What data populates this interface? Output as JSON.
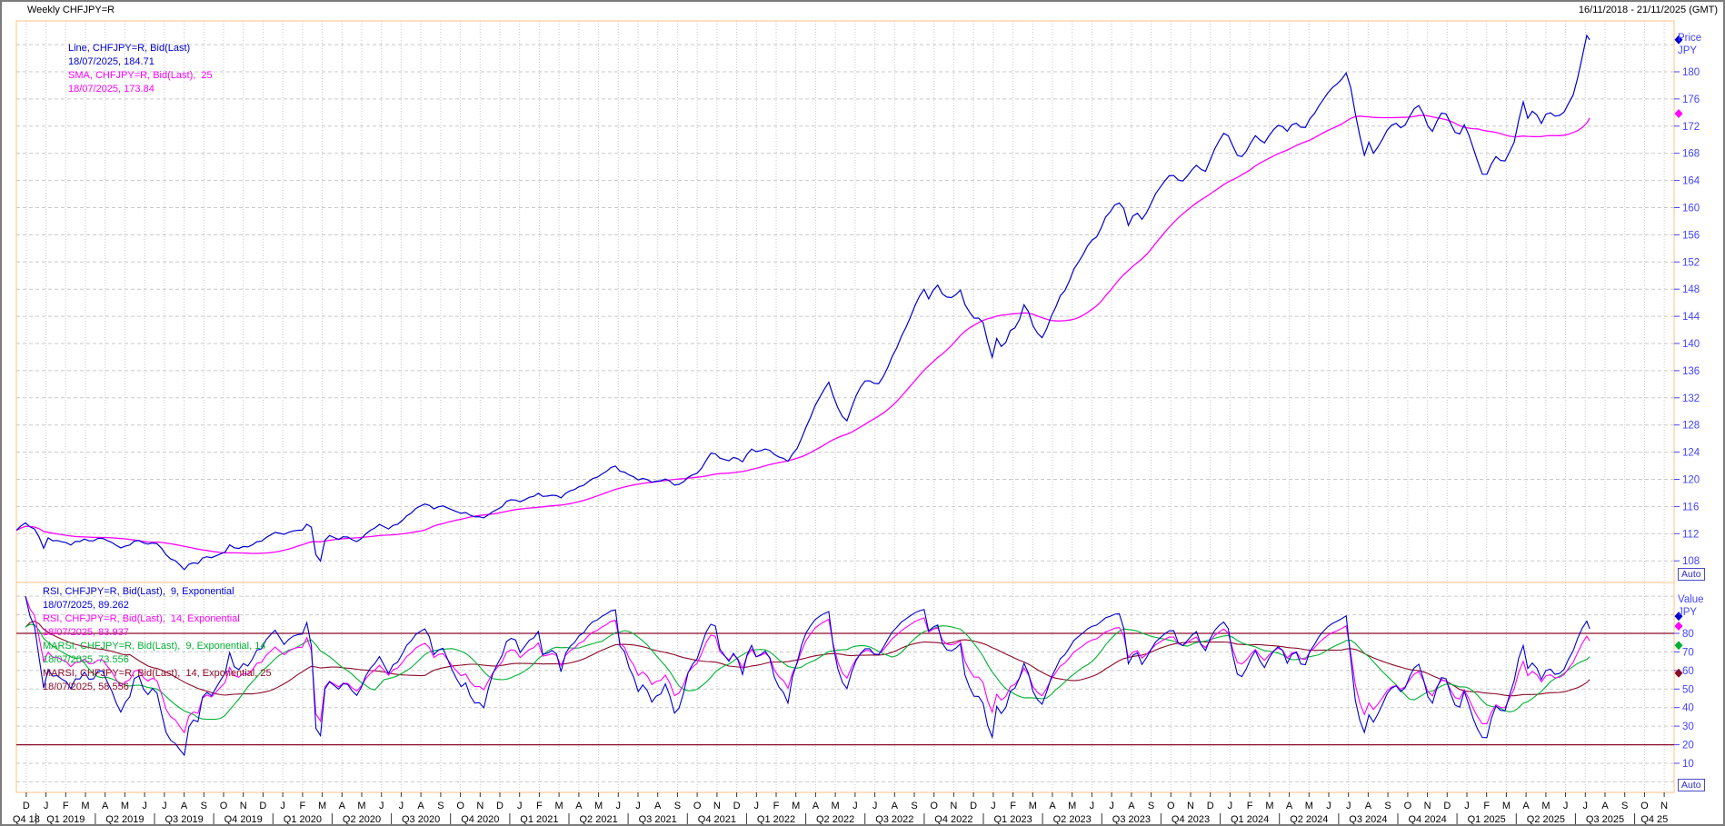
{
  "window": {
    "title": "Weekly CHFJPY=R",
    "date_range": "16/11/2018 - 21/11/2025 (GMT)"
  },
  "colors": {
    "price_line": "#0000cf",
    "sma_line": "#ff00ff",
    "rsi9": "#0000cf",
    "rsi14": "#ff00ff",
    "marsi9": "#00b132",
    "marsi14": "#8b0a28",
    "band_lines": "#8b0a28",
    "grid": "#c9c9c9",
    "frame": "#ffc080",
    "axis_text": "#4343ff",
    "label_text": "#000000",
    "auto_text": "#2b2bd5"
  },
  "main_panel": {
    "legend": [
      {
        "label": "Line, CHFJPY=R, Bid(Last)",
        "value_line": "18/07/2025, 184.71",
        "color_key": "price_line"
      },
      {
        "label": "SMA, CHFJPY=R, Bid(Last),  25",
        "value_line": "18/07/2025, 173.84",
        "color_key": "sma_line"
      }
    ],
    "axis": {
      "title_line1": "Price",
      "title_line2": "JPY",
      "ticks": [
        180,
        176,
        172,
        168,
        164,
        160,
        156,
        152,
        148,
        144,
        140,
        136,
        132,
        128,
        124,
        120,
        116,
        112,
        108
      ],
      "auto_label": "Auto",
      "markers": [
        {
          "value": 184.71,
          "color_key": "price_line"
        },
        {
          "value": 173.84,
          "color_key": "sma_line"
        }
      ]
    }
  },
  "rsi_panel": {
    "legend": [
      {
        "label": "RSI, CHFJPY=R, Bid(Last),  9, Exponential",
        "value_line": "18/07/2025, 89.262",
        "color_key": "rsi9"
      },
      {
        "label": "RSI, CHFJPY=R, Bid(Last),  14, Exponential",
        "value_line": "18/07/2025, 83.937",
        "color_key": "rsi14"
      },
      {
        "label": "MARSI, CHFJPY=R, Bid(Last),  9, Exponential, 14",
        "value_line": "18/07/2025, 73.556",
        "color_key": "marsi9"
      },
      {
        "label": "MARSI, CHFJPY=R, Bid(Last),  14, Exponential, 25",
        "value_line": "18/07/2025, 58.556",
        "color_key": "marsi14"
      }
    ],
    "axis": {
      "title_line1": "Value",
      "title_line2": "JPY",
      "ticks": [
        80,
        70,
        60,
        50,
        40,
        30,
        20,
        10
      ],
      "auto_label": "Auto",
      "markers": [
        {
          "value": 89.262,
          "color_key": "rsi9"
        },
        {
          "value": 83.937,
          "color_key": "rsi14"
        },
        {
          "value": 73.556,
          "color_key": "marsi9"
        },
        {
          "value": 58.556,
          "color_key": "marsi14"
        }
      ]
    },
    "overbought": 80,
    "oversold": 20
  },
  "time_axis": {
    "months": [
      "D",
      "J",
      "F",
      "M",
      "A",
      "M",
      "J",
      "J",
      "A",
      "S",
      "O",
      "N",
      "D",
      "J",
      "F",
      "M",
      "A",
      "M",
      "J",
      "J",
      "A",
      "S",
      "O",
      "N",
      "D",
      "J",
      "F",
      "M",
      "A",
      "M",
      "J",
      "J",
      "A",
      "S",
      "O",
      "N",
      "D",
      "J",
      "F",
      "M",
      "A",
      "M",
      "J",
      "J",
      "A",
      "S",
      "O",
      "N",
      "D",
      "J",
      "F",
      "M",
      "A",
      "M",
      "J",
      "J",
      "A",
      "S",
      "O",
      "N",
      "D",
      "J",
      "F",
      "M",
      "A",
      "M",
      "J",
      "J",
      "A",
      "S",
      "O",
      "N",
      "D",
      "J",
      "F",
      "M",
      "A",
      "M",
      "J",
      "J",
      "A",
      "S",
      "O",
      "N"
    ],
    "quarters": [
      "Q4 18",
      "Q1 2019",
      "Q2 2019",
      "Q3 2019",
      "Q4 2019",
      "Q1 2020",
      "Q2 2020",
      "Q3 2020",
      "Q4 2020",
      "Q1 2021",
      "Q2 2021",
      "Q3 2021",
      "Q4 2021",
      "Q1 2022",
      "Q2 2022",
      "Q3 2022",
      "Q4 2022",
      "Q1 2023",
      "Q2 2023",
      "Q3 2023",
      "Q4 2023",
      "Q1 2024",
      "Q2 2024",
      "Q3 2024",
      "Q4 2024",
      "Q1 2025",
      "Q2 2025",
      "Q3 2025",
      "Q4 25"
    ]
  },
  "chart_data": {
    "type": "line",
    "title": "Weekly CHFJPY=R",
    "x_unit": "months since Dec 2018 (weekly data)",
    "x_end": 79.72,
    "last_price": 184.71,
    "price_ylim": [
      104.8,
      187.5
    ],
    "price_grid_step": 4,
    "rsi_ylim": [
      -5.7,
      107.4
    ],
    "rsi_grid_step": 10,
    "grid": "on",
    "legend_position": "top-left-inside",
    "series_meta": [
      {
        "name": "Line CHFJPY=R Bid(Last)",
        "panel": "price",
        "color_key": "price_line",
        "last": 184.71
      },
      {
        "name": "SMA 25",
        "panel": "price",
        "color_key": "sma_line",
        "period": 25,
        "last": 173.84
      },
      {
        "name": "RSI 9 Exponential",
        "panel": "rsi",
        "color_key": "rsi9",
        "period": 9,
        "last": 89.262
      },
      {
        "name": "RSI 14 Exponential",
        "panel": "rsi",
        "color_key": "rsi14",
        "period": 14,
        "last": 83.937
      },
      {
        "name": "MARSI 9 Exponential 14",
        "panel": "rsi",
        "color_key": "marsi9",
        "rsi_period": 9,
        "ma_period": 14,
        "last": 73.556
      },
      {
        "name": "MARSI 14 Exponential 25",
        "panel": "rsi",
        "color_key": "marsi14",
        "rsi_period": 14,
        "ma_period": 25,
        "last": 58.556
      }
    ],
    "price_anchors": [
      [
        0,
        112.5
      ],
      [
        0.4,
        113.6
      ],
      [
        0.8,
        113.1
      ],
      [
        1.1,
        111.9
      ],
      [
        1.35,
        109.7
      ],
      [
        1.6,
        111.2
      ],
      [
        1.9,
        110.8
      ],
      [
        2.2,
        111.0
      ],
      [
        2.6,
        110.4
      ],
      [
        3,
        110.8
      ],
      [
        3.4,
        111.2
      ],
      [
        3.8,
        110.7
      ],
      [
        4.2,
        111.6
      ],
      [
        4.6,
        111.0
      ],
      [
        5,
        110.4
      ],
      [
        5.4,
        109.8
      ],
      [
        5.8,
        110.5
      ],
      [
        6.2,
        111.0
      ],
      [
        6.6,
        110.3
      ],
      [
        7,
        110.7
      ],
      [
        7.4,
        109.5
      ],
      [
        7.8,
        108.2
      ],
      [
        8.3,
        107.5
      ],
      [
        8.55,
        106.7
      ],
      [
        8.8,
        108.0
      ],
      [
        9.2,
        107.8
      ],
      [
        9.6,
        108.6
      ],
      [
        10,
        108.3
      ],
      [
        10.4,
        109.0
      ],
      [
        10.8,
        110.2
      ],
      [
        11.2,
        109.8
      ],
      [
        11.6,
        110.1
      ],
      [
        12,
        110.5
      ],
      [
        12.4,
        111.0
      ],
      [
        12.8,
        111.4
      ],
      [
        13.2,
        112.3
      ],
      [
        13.6,
        112.0
      ],
      [
        14,
        112.6
      ],
      [
        14.3,
        112.2
      ],
      [
        14.6,
        112.9
      ],
      [
        14.9,
        113.7
      ],
      [
        15.2,
        108.4
      ],
      [
        15.45,
        107.8
      ],
      [
        15.7,
        112.1
      ],
      [
        16,
        111.5
      ],
      [
        16.4,
        111.1
      ],
      [
        16.8,
        111.6
      ],
      [
        17.2,
        110.9
      ],
      [
        17.6,
        111.5
      ],
      [
        18,
        112.4
      ],
      [
        18.4,
        113.4
      ],
      [
        18.8,
        112.7
      ],
      [
        19.2,
        113.2
      ],
      [
        19.6,
        114.0
      ],
      [
        20,
        115.1
      ],
      [
        20.4,
        115.8
      ],
      [
        20.8,
        116.4
      ],
      [
        21.2,
        115.7
      ],
      [
        21.6,
        116.0
      ],
      [
        22,
        115.4
      ],
      [
        22.4,
        114.9
      ],
      [
        22.8,
        115.3
      ],
      [
        23.2,
        114.5
      ],
      [
        23.6,
        114.1
      ],
      [
        24,
        115.0
      ],
      [
        24.4,
        115.7
      ],
      [
        24.8,
        116.5
      ],
      [
        25.2,
        117.1
      ],
      [
        25.6,
        116.5
      ],
      [
        26,
        117.3
      ],
      [
        26.4,
        117.8
      ],
      [
        26.8,
        117.2
      ],
      [
        27.2,
        117.9
      ],
      [
        27.6,
        117.5
      ],
      [
        28,
        118.3
      ],
      [
        28.4,
        118.8
      ],
      [
        28.8,
        119.4
      ],
      [
        29.2,
        119.9
      ],
      [
        29.6,
        120.7
      ],
      [
        30,
        121.4
      ],
      [
        30.3,
        121.9
      ],
      [
        30.7,
        121.0
      ],
      [
        31.1,
        120.4
      ],
      [
        31.5,
        119.8
      ],
      [
        31.9,
        120.3
      ],
      [
        32.3,
        119.5
      ],
      [
        32.7,
        120.0
      ],
      [
        33.1,
        119.6
      ],
      [
        33.5,
        119.0
      ],
      [
        33.9,
        119.7
      ],
      [
        34.3,
        120.8
      ],
      [
        34.7,
        121.5
      ],
      [
        35,
        123.0
      ],
      [
        35.3,
        124.3
      ],
      [
        35.7,
        123.2
      ],
      [
        36,
        122.4
      ],
      [
        36.4,
        123.4
      ],
      [
        36.8,
        122.8
      ],
      [
        37.2,
        124.7
      ],
      [
        37.6,
        124.1
      ],
      [
        38,
        124.4
      ],
      [
        38.4,
        123.6
      ],
      [
        38.8,
        123.1
      ],
      [
        39.1,
        122.7
      ],
      [
        39.4,
        123.8
      ],
      [
        39.8,
        126.2
      ],
      [
        40.1,
        128.0
      ],
      [
        40.5,
        131.0
      ],
      [
        40.9,
        133.2
      ],
      [
        41.15,
        134.4
      ],
      [
        41.5,
        131.2
      ],
      [
        41.8,
        129.5
      ],
      [
        42.1,
        128.5
      ],
      [
        42.5,
        131.8
      ],
      [
        42.9,
        134.4
      ],
      [
        43.2,
        134.8
      ],
      [
        43.6,
        133.6
      ],
      [
        44,
        135.5
      ],
      [
        44.4,
        138.1
      ],
      [
        44.8,
        140.6
      ],
      [
        45.2,
        143.2
      ],
      [
        45.6,
        145.9
      ],
      [
        46,
        148.0
      ],
      [
        46.3,
        146.3
      ],
      [
        46.6,
        148.9
      ],
      [
        47,
        147.2
      ],
      [
        47.4,
        146.5
      ],
      [
        47.8,
        147.9
      ],
      [
        48.2,
        145.0
      ],
      [
        48.6,
        143.4
      ],
      [
        48.9,
        144.1
      ],
      [
        49.2,
        140.2
      ],
      [
        49.45,
        137.7
      ],
      [
        49.7,
        141.1
      ],
      [
        50,
        139.1
      ],
      [
        50.3,
        141.9
      ],
      [
        50.7,
        142.5
      ],
      [
        51.1,
        146.2
      ],
      [
        51.4,
        143.5
      ],
      [
        51.7,
        141.8
      ],
      [
        52,
        140.8
      ],
      [
        52.4,
        143.9
      ],
      [
        52.8,
        146.4
      ],
      [
        53.2,
        148.3
      ],
      [
        53.6,
        151.0
      ],
      [
        54,
        152.8
      ],
      [
        54.4,
        155.0
      ],
      [
        54.8,
        156.1
      ],
      [
        55.2,
        158.4
      ],
      [
        55.6,
        160.0
      ],
      [
        56,
        161.3
      ],
      [
        56.35,
        157.5
      ],
      [
        56.7,
        159.6
      ],
      [
        57.05,
        158.0
      ],
      [
        57.4,
        160.0
      ],
      [
        57.8,
        162.3
      ],
      [
        58.2,
        163.9
      ],
      [
        58.6,
        165.0
      ],
      [
        59,
        163.3
      ],
      [
        59.4,
        164.7
      ],
      [
        59.8,
        166.3
      ],
      [
        60.2,
        165.2
      ],
      [
        60.6,
        167.9
      ],
      [
        61,
        170.0
      ],
      [
        61.3,
        171.5
      ],
      [
        61.7,
        168.8
      ],
      [
        62,
        166.9
      ],
      [
        62.4,
        168.8
      ],
      [
        62.8,
        170.8
      ],
      [
        63.2,
        169.2
      ],
      [
        63.6,
        171.0
      ],
      [
        64,
        172.3
      ],
      [
        64.4,
        171.0
      ],
      [
        64.8,
        172.7
      ],
      [
        65.2,
        171.4
      ],
      [
        65.6,
        173.3
      ],
      [
        66,
        174.9
      ],
      [
        66.4,
        176.5
      ],
      [
        66.8,
        177.8
      ],
      [
        67.2,
        179.2
      ],
      [
        67.45,
        179.8
      ],
      [
        67.7,
        176.2
      ],
      [
        68,
        171.8
      ],
      [
        68.25,
        167.2
      ],
      [
        68.5,
        170.1
      ],
      [
        68.8,
        167.8
      ],
      [
        69.1,
        169.4
      ],
      [
        69.5,
        171.5
      ],
      [
        69.9,
        172.7
      ],
      [
        70.3,
        171.5
      ],
      [
        70.7,
        174.0
      ],
      [
        71,
        175.3
      ],
      [
        71.35,
        173.3
      ],
      [
        71.7,
        171.1
      ],
      [
        72,
        172.9
      ],
      [
        72.35,
        174.6
      ],
      [
        72.7,
        172.2
      ],
      [
        73,
        170.4
      ],
      [
        73.35,
        172.1
      ],
      [
        73.7,
        169.8
      ],
      [
        74,
        167.4
      ],
      [
        74.35,
        164.2
      ],
      [
        74.7,
        166.2
      ],
      [
        75,
        167.8
      ],
      [
        75.35,
        166.2
      ],
      [
        75.7,
        168.2
      ],
      [
        76,
        170.7
      ],
      [
        76.3,
        175.9
      ],
      [
        76.6,
        173.2
      ],
      [
        76.9,
        174.9
      ],
      [
        77.2,
        172.1
      ],
      [
        77.5,
        173.7
      ],
      [
        77.8,
        174.2
      ],
      [
        78.1,
        173.0
      ],
      [
        78.4,
        174.1
      ],
      [
        78.7,
        175.5
      ],
      [
        79,
        177.6
      ],
      [
        79.25,
        180.9
      ],
      [
        79.5,
        184.3
      ],
      [
        79.62,
        186.0
      ],
      [
        79.72,
        184.71
      ]
    ]
  }
}
